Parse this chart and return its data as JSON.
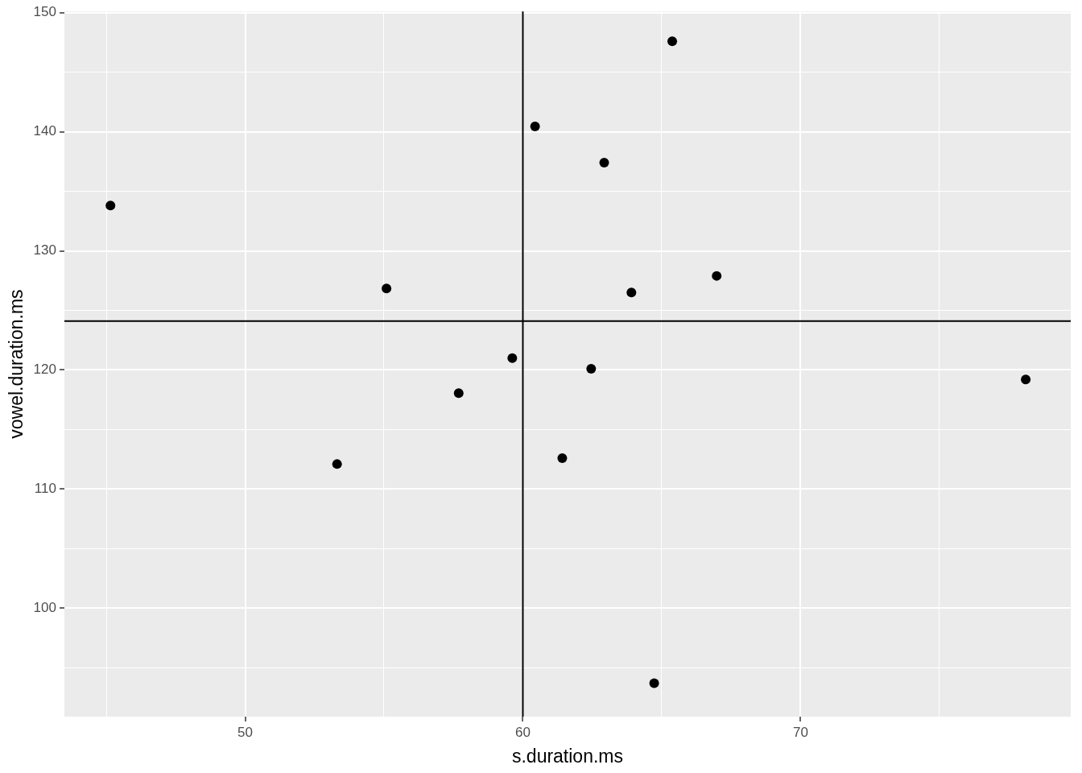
{
  "chart_data": {
    "type": "scatter",
    "xlabel": "s.duration.ms",
    "ylabel": "vowel.duration.ms",
    "x": [
      45.15,
      55.09,
      53.31,
      57.69,
      59.62,
      60.44,
      61.42,
      62.46,
      62.93,
      63.91,
      64.73,
      65.38,
      66.98,
      78.11
    ],
    "series": [
      {
        "color": "#000000",
        "values": [
          133.8,
          126.85,
          112.1,
          118.06,
          121.0,
          140.45,
          112.6,
          120.1,
          137.4,
          126.5,
          93.7,
          147.6,
          127.9,
          119.2
        ]
      }
    ],
    "xlim": [
      43.49,
      79.73
    ],
    "ylim": [
      90.9,
      150.1
    ],
    "xticks": [
      {
        "value": 45,
        "label": null
      },
      50,
      {
        "value": 55,
        "label": null
      },
      60,
      {
        "value": 65,
        "label": null
      },
      70,
      {
        "value": 75,
        "label": null
      }
    ],
    "yticks": [
      {
        "value": 95,
        "label": null
      },
      100,
      {
        "value": 105,
        "label": null
      },
      110,
      {
        "value": 115,
        "label": null
      },
      120,
      {
        "value": 125,
        "label": null
      },
      130,
      {
        "value": 135,
        "label": null
      },
      140,
      {
        "value": 145,
        "label": null
      },
      150
    ],
    "ref_lines": [
      {
        "axis": "x",
        "value": 60,
        "color": "#000000"
      },
      {
        "axis": "y",
        "value": 124.1,
        "color": "#000000"
      }
    ],
    "grid": true,
    "marker": "circle",
    "legend": false
  }
}
